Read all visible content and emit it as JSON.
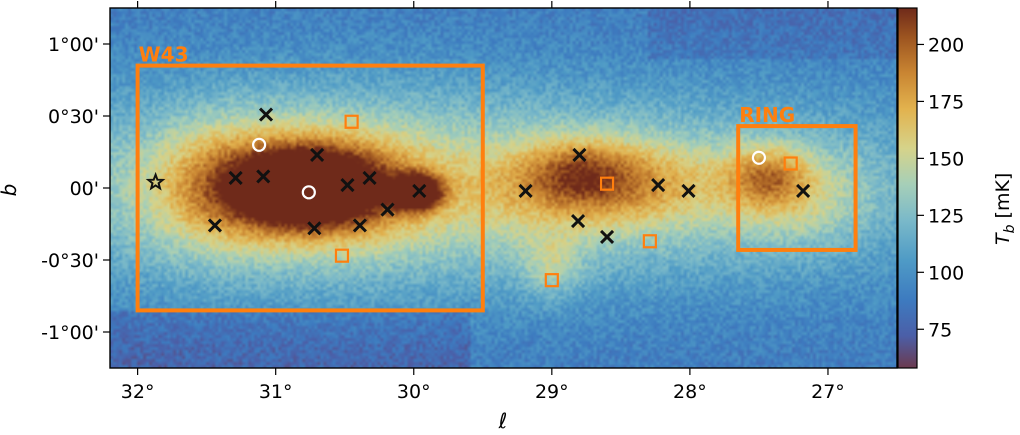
{
  "chart_data": {
    "type": "heatmap",
    "xlabel": "ℓ",
    "ylabel": "b",
    "xlim": [
      32.2,
      26.5
    ],
    "ylim": [
      -1.25,
      1.25
    ],
    "x_ticks": [
      {
        "value": 32,
        "label": "32°"
      },
      {
        "value": 31,
        "label": "31°"
      },
      {
        "value": 30,
        "label": "30°"
      },
      {
        "value": 29,
        "label": "29°"
      },
      {
        "value": 28,
        "label": "28°"
      },
      {
        "value": 27,
        "label": "27°"
      }
    ],
    "y_ticks": [
      {
        "value": 1.0,
        "label": "1°00'"
      },
      {
        "value": 0.5,
        "label": "0°30'"
      },
      {
        "value": 0.0,
        "label": "00'"
      },
      {
        "value": -0.5,
        "label": "-0°30'"
      },
      {
        "value": -1.0,
        "label": "-1°00'"
      }
    ],
    "colorbar": {
      "label": "T_b [mK]",
      "label_main": "T",
      "label_sub": "b",
      "label_unit": " [mK]",
      "range": [
        58,
        216
      ],
      "ticks": [
        {
          "value": 200,
          "label": "200"
        },
        {
          "value": 175,
          "label": "175"
        },
        {
          "value": 150,
          "label": "150"
        },
        {
          "value": 125,
          "label": "125"
        },
        {
          "value": 100,
          "label": "100"
        },
        {
          "value": 75,
          "label": "75"
        }
      ]
    },
    "regions": [
      {
        "name": "W43",
        "l_range": [
          32.0,
          29.5
        ],
        "b_range": [
          -0.85,
          0.85
        ]
      },
      {
        "name": "RING",
        "l_range": [
          27.65,
          26.8
        ],
        "b_range": [
          -0.43,
          0.43
        ]
      }
    ],
    "emission_blobs": [
      {
        "l": 30.8,
        "b": 0.0,
        "sl": 0.28,
        "sb": 0.16,
        "amp": 120
      },
      {
        "l": 31.0,
        "b": 0.02,
        "sl": 0.5,
        "sb": 0.28,
        "amp": 45
      },
      {
        "l": 29.98,
        "b": -0.03,
        "sl": 0.12,
        "sb": 0.08,
        "amp": 120
      },
      {
        "l": 30.4,
        "b": 0.0,
        "sl": 0.35,
        "sb": 0.25,
        "amp": 40
      },
      {
        "l": 31.4,
        "b": 0.0,
        "sl": 0.35,
        "sb": 0.3,
        "amp": 30
      },
      {
        "l": 30.7,
        "b": 0.0,
        "sl": 1.2,
        "sb": 0.5,
        "amp": 38
      },
      {
        "l": 28.6,
        "b": 0.03,
        "sl": 0.55,
        "sb": 0.2,
        "amp": 45
      },
      {
        "l": 28.8,
        "b": 0.12,
        "sl": 0.25,
        "sb": 0.15,
        "amp": 30
      },
      {
        "l": 28.5,
        "b": 0.0,
        "sl": 1.1,
        "sb": 0.4,
        "amp": 30
      },
      {
        "l": 29.0,
        "b": -0.55,
        "sl": 0.15,
        "sb": 0.15,
        "amp": 28
      },
      {
        "l": 27.45,
        "b": 0.08,
        "sl": 0.2,
        "sb": 0.15,
        "amp": 45
      },
      {
        "l": 27.2,
        "b": -0.05,
        "sl": 0.35,
        "sb": 0.25,
        "amp": 30
      }
    ],
    "markers": [
      {
        "type": "star",
        "l": 31.87,
        "b": 0.04
      },
      {
        "type": "cross",
        "l": 31.07,
        "b": 0.51
      },
      {
        "type": "cross",
        "l": 30.7,
        "b": 0.23
      },
      {
        "type": "cross",
        "l": 31.29,
        "b": 0.07
      },
      {
        "type": "cross",
        "l": 31.09,
        "b": 0.08
      },
      {
        "type": "cross",
        "l": 30.48,
        "b": 0.02
      },
      {
        "type": "cross",
        "l": 30.32,
        "b": 0.07
      },
      {
        "type": "cross",
        "l": 30.19,
        "b": -0.15
      },
      {
        "type": "cross",
        "l": 30.39,
        "b": -0.26
      },
      {
        "type": "cross",
        "l": 30.72,
        "b": -0.28
      },
      {
        "type": "cross",
        "l": 31.44,
        "b": -0.26
      },
      {
        "type": "cross",
        "l": 29.96,
        "b": -0.02
      },
      {
        "type": "cross",
        "l": 29.19,
        "b": -0.02
      },
      {
        "type": "cross",
        "l": 28.8,
        "b": 0.23
      },
      {
        "type": "cross",
        "l": 28.81,
        "b": -0.23
      },
      {
        "type": "cross",
        "l": 28.6,
        "b": -0.34
      },
      {
        "type": "cross",
        "l": 28.23,
        "b": 0.02
      },
      {
        "type": "cross",
        "l": 28.01,
        "b": -0.02
      },
      {
        "type": "cross",
        "l": 27.18,
        "b": -0.02
      },
      {
        "type": "circle",
        "l": 31.12,
        "b": 0.3
      },
      {
        "type": "circle",
        "l": 30.76,
        "b": -0.03
      },
      {
        "type": "circle",
        "l": 27.5,
        "b": 0.21
      },
      {
        "type": "square",
        "l": 30.45,
        "b": 0.46
      },
      {
        "type": "square",
        "l": 30.52,
        "b": -0.47
      },
      {
        "type": "square",
        "l": 28.6,
        "b": 0.03
      },
      {
        "type": "square",
        "l": 28.29,
        "b": -0.37
      },
      {
        "type": "square",
        "l": 29.0,
        "b": -0.64
      },
      {
        "type": "square",
        "l": 27.27,
        "b": 0.17
      }
    ],
    "colors": {
      "region_box": "#ff7f0e",
      "cross": "#111111",
      "circle": "#ffffff"
    }
  }
}
